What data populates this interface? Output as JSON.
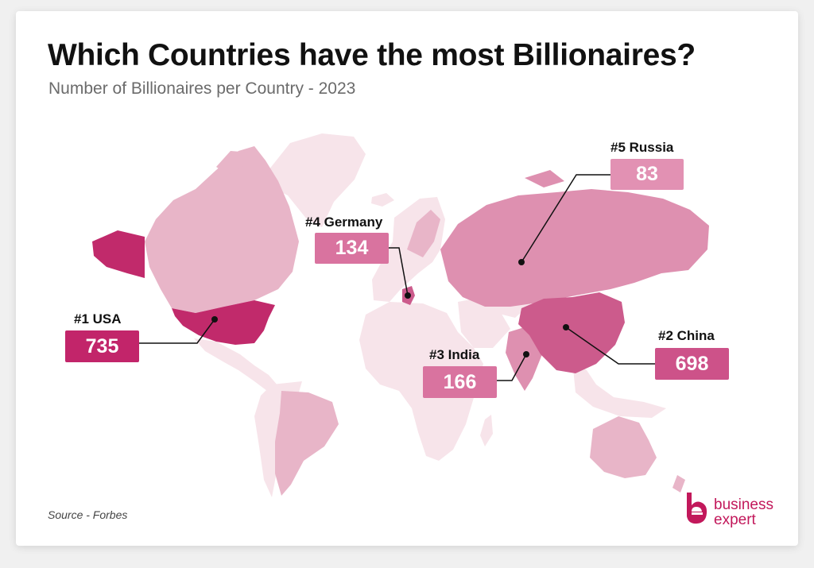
{
  "header": {
    "title": "Which Countries have the most Billionaires?",
    "subtitle": "Number of Billionaires per Country - 2023"
  },
  "colors": {
    "no_data": "#f7e4ea",
    "low": "#e8b5c8",
    "mid": "#de90b0",
    "high": "#cc5b8c",
    "top": "#c12a6b",
    "box_top": "#c2256a",
    "box_high": "#cd5289",
    "box_mid": "#d9739f",
    "box_low": "#e291b3"
  },
  "callouts": [
    {
      "rank_label": "#1 USA",
      "value": "735",
      "country": "usa",
      "tier": "top"
    },
    {
      "rank_label": "#2 China",
      "value": "698",
      "country": "china",
      "tier": "high"
    },
    {
      "rank_label": "#3 India",
      "value": "166",
      "country": "india",
      "tier": "mid"
    },
    {
      "rank_label": "#4 Germany",
      "value": "134",
      "country": "germany",
      "tier": "mid"
    },
    {
      "rank_label": "#5 Russia",
      "value": "83",
      "country": "russia",
      "tier": "low"
    }
  ],
  "footer": {
    "source": "Source - Forbes"
  },
  "logo": {
    "line1": "business",
    "line2": "expert",
    "mark": "e-logo-icon"
  }
}
